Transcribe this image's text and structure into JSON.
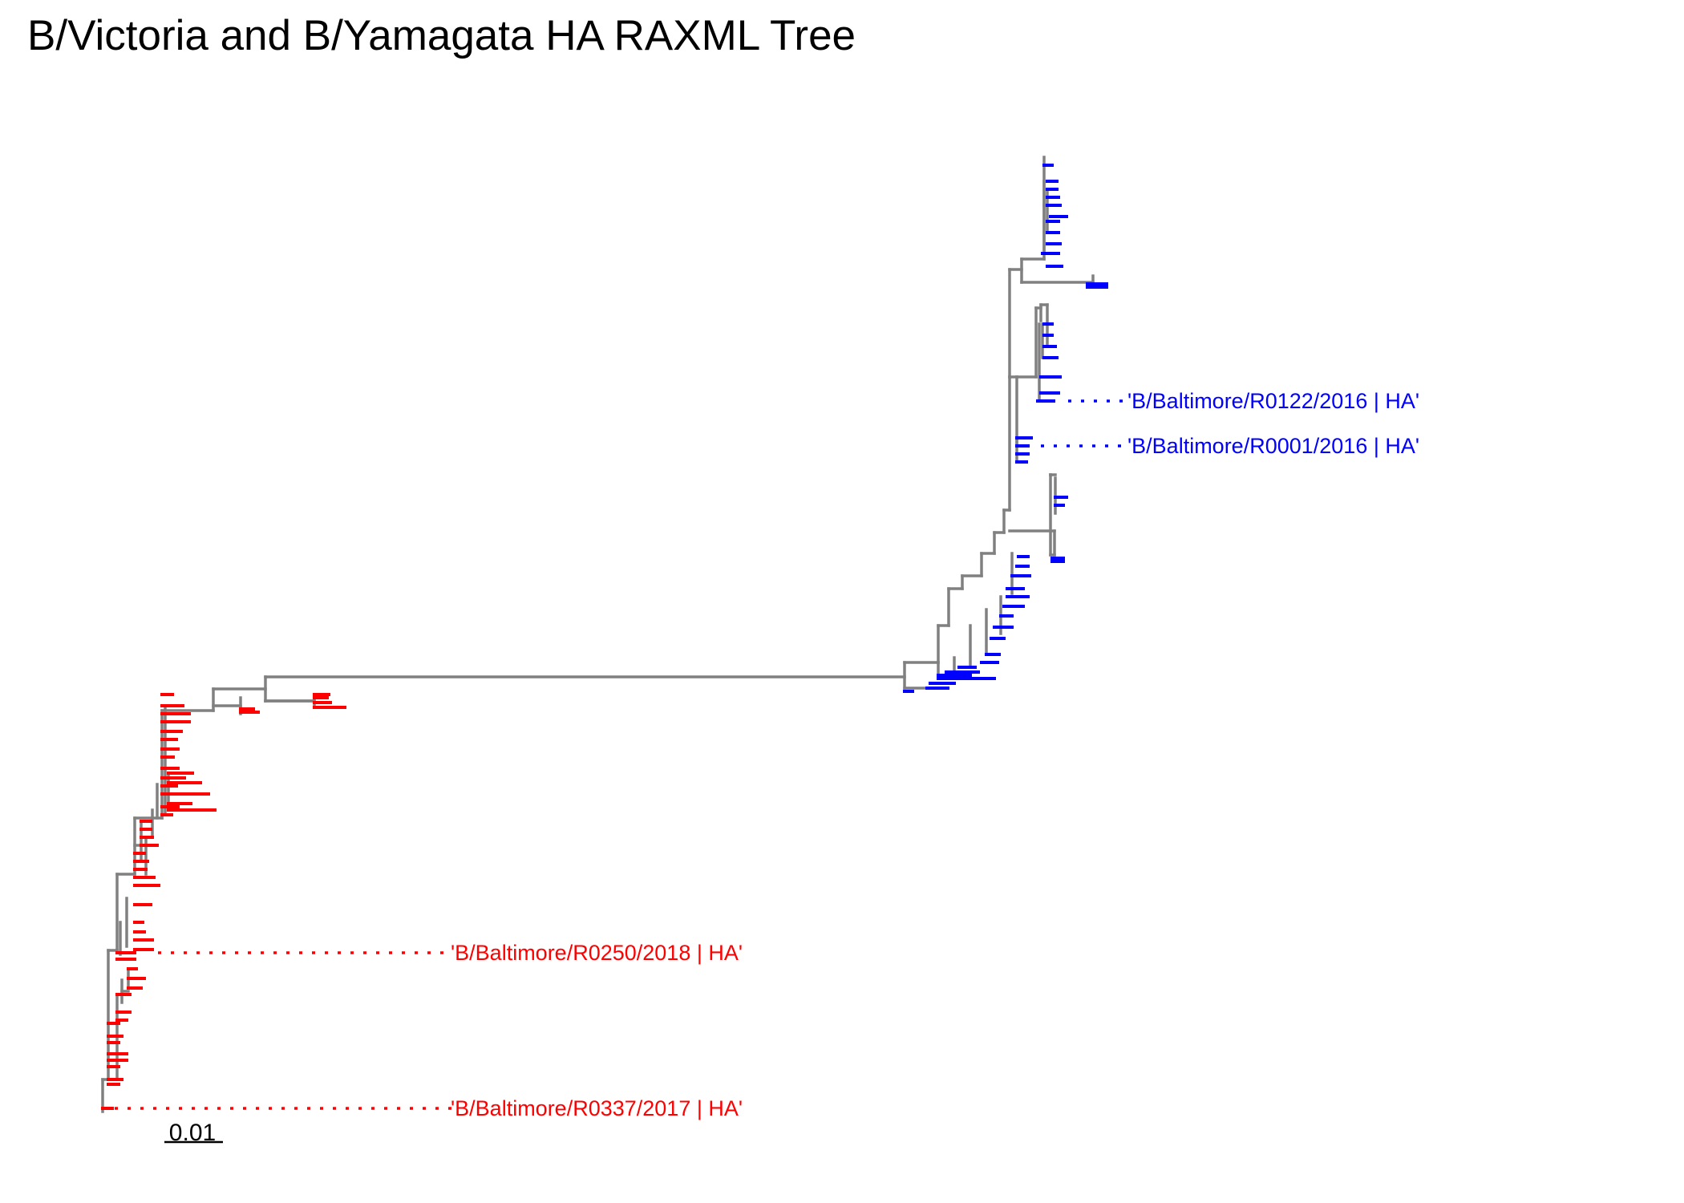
{
  "title": "B/Victoria and B/Yamagata HA RAXML Tree",
  "colors": {
    "branch": "#808080",
    "victoria": "#ff0000",
    "yamagata": "#0000ff",
    "scale": "#000000"
  },
  "scale_bar": {
    "label": "0.01",
    "length": 0.01
  },
  "clades": [
    {
      "name": "B/Victoria",
      "color_key": "victoria"
    },
    {
      "name": "B/Yamagata",
      "color_key": "yamagata"
    }
  ],
  "highlighted_tips": [
    {
      "label": "'B/Baltimore/R0122/2016 | HA'",
      "clade": "yamagata"
    },
    {
      "label": "'B/Baltimore/R0001/2016 | HA'",
      "clade": "yamagata"
    },
    {
      "label": "'B/Baltimore/R0250/2018 | HA'",
      "clade": "victoria"
    },
    {
      "label": "'B/Baltimore/R0337/2017 | HA'",
      "clade": "victoria"
    }
  ]
}
